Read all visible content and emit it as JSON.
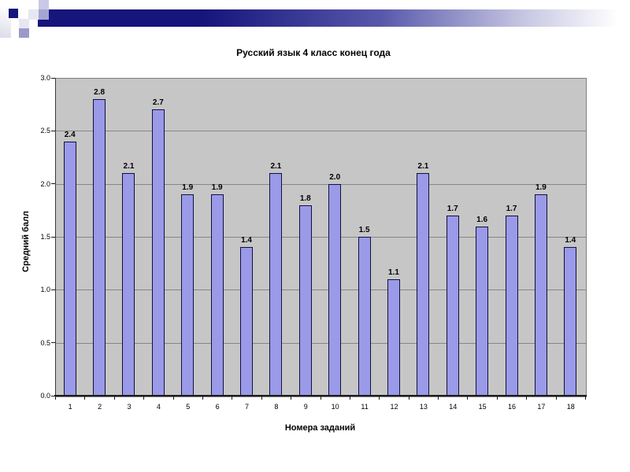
{
  "slide": {
    "background_color": "#ffffff",
    "banner_colors": [
      "#15157c",
      "#5858ab",
      "#c6c6e2",
      "#ffffff"
    ],
    "accent_square_color": "#15157c"
  },
  "chart_data": {
    "type": "bar",
    "title": "Русский язык 4 класс конец года",
    "xlabel": "Номера заданий",
    "ylabel": "Средний балл",
    "categories": [
      "1",
      "2",
      "3",
      "4",
      "5",
      "6",
      "7",
      "8",
      "9",
      "10",
      "11",
      "12",
      "13",
      "14",
      "15",
      "16",
      "17",
      "18"
    ],
    "values": [
      2.4,
      2.8,
      2.1,
      2.7,
      1.9,
      1.9,
      1.4,
      2.1,
      1.8,
      2.0,
      1.5,
      1.1,
      2.1,
      1.7,
      1.6,
      1.7,
      1.9,
      1.4
    ],
    "bar_labels": [
      "2.4",
      "2.8",
      "2.1",
      "2.7",
      "1.9",
      "1.9",
      "1.4",
      "2.1",
      "1.8",
      "2.0",
      "1.5",
      "1.1",
      "2.1",
      "1.7",
      "1.6",
      "1.7",
      "1.9",
      "1.4"
    ],
    "ylim": [
      0,
      3
    ],
    "ytick_labels": [
      "0.0",
      "0.5",
      "1.0",
      "1.5",
      "2.0",
      "2.5",
      "3.0"
    ],
    "gridline_values": [
      0.5,
      1.0,
      1.5,
      2.0,
      2.5
    ],
    "grid": true,
    "legend": false,
    "bar_color": "#9a9ae8",
    "bar_border_color": "#10103c",
    "plot_background": "#c6c6c6",
    "series_name": "Средний балл"
  }
}
